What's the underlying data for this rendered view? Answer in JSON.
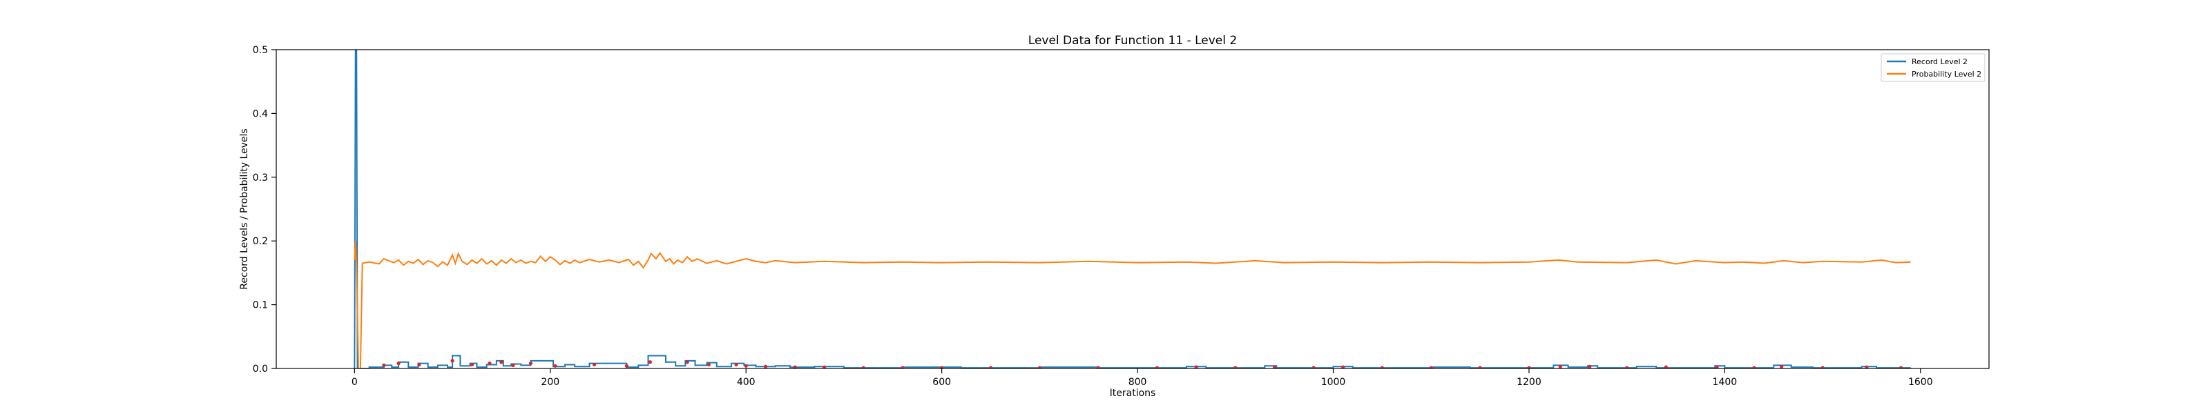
{
  "chart_data": {
    "type": "line",
    "title": "Level Data for Function 11 - Level 2",
    "xlabel": "Iterations",
    "ylabel": "Record Levels / Probability Levels",
    "xlim": [
      -80,
      1670
    ],
    "ylim": [
      0,
      0.5
    ],
    "x_ticks": [
      0,
      200,
      400,
      600,
      800,
      1000,
      1200,
      1400,
      1600
    ],
    "y_ticks": [
      0.0,
      0.1,
      0.2,
      0.3,
      0.4,
      0.5
    ],
    "x_tick_labels": [
      "0",
      "200",
      "400",
      "600",
      "800",
      "1000",
      "1200",
      "1400",
      "1600"
    ],
    "y_tick_labels": [
      "0.0",
      "0.1",
      "0.2",
      "0.3",
      "0.4",
      "0.5"
    ],
    "grid": false,
    "legend_position": "top-right",
    "series": [
      {
        "name": "Record Level 2",
        "color": "#1f77b4",
        "step": true,
        "points": [
          [
            0,
            0.0
          ],
          [
            1,
            0.5
          ],
          [
            2,
            0.5
          ],
          [
            3,
            0.0
          ],
          [
            15,
            0.0
          ],
          [
            15,
            0.002
          ],
          [
            30,
            0.002
          ],
          [
            30,
            0.005
          ],
          [
            38,
            0.005
          ],
          [
            38,
            0.002
          ],
          [
            45,
            0.002
          ],
          [
            45,
            0.01
          ],
          [
            55,
            0.01
          ],
          [
            55,
            0.002
          ],
          [
            65,
            0.002
          ],
          [
            65,
            0.008
          ],
          [
            75,
            0.008
          ],
          [
            75,
            0.002
          ],
          [
            85,
            0.002
          ],
          [
            85,
            0.005
          ],
          [
            95,
            0.005
          ],
          [
            95,
            0.002
          ],
          [
            100,
            0.002
          ],
          [
            100,
            0.02
          ],
          [
            108,
            0.02
          ],
          [
            108,
            0.004
          ],
          [
            118,
            0.004
          ],
          [
            118,
            0.008
          ],
          [
            125,
            0.008
          ],
          [
            125,
            0.002
          ],
          [
            135,
            0.002
          ],
          [
            135,
            0.006
          ],
          [
            145,
            0.006
          ],
          [
            145,
            0.012
          ],
          [
            152,
            0.012
          ],
          [
            152,
            0.004
          ],
          [
            160,
            0.004
          ],
          [
            160,
            0.007
          ],
          [
            170,
            0.007
          ],
          [
            170,
            0.005
          ],
          [
            180,
            0.005
          ],
          [
            180,
            0.012
          ],
          [
            203,
            0.012
          ],
          [
            203,
            0.003
          ],
          [
            215,
            0.003
          ],
          [
            215,
            0.006
          ],
          [
            225,
            0.006
          ],
          [
            225,
            0.003
          ],
          [
            240,
            0.003
          ],
          [
            240,
            0.008
          ],
          [
            278,
            0.008
          ],
          [
            278,
            0.002
          ],
          [
            290,
            0.002
          ],
          [
            290,
            0.005
          ],
          [
            300,
            0.005
          ],
          [
            300,
            0.02
          ],
          [
            318,
            0.02
          ],
          [
            318,
            0.01
          ],
          [
            328,
            0.01
          ],
          [
            328,
            0.004
          ],
          [
            338,
            0.004
          ],
          [
            338,
            0.012
          ],
          [
            348,
            0.012
          ],
          [
            348,
            0.005
          ],
          [
            360,
            0.005
          ],
          [
            360,
            0.009
          ],
          [
            370,
            0.009
          ],
          [
            370,
            0.003
          ],
          [
            385,
            0.003
          ],
          [
            385,
            0.008
          ],
          [
            398,
            0.008
          ],
          [
            398,
            0.005
          ],
          [
            410,
            0.005
          ],
          [
            410,
            0.003
          ],
          [
            430,
            0.003
          ],
          [
            430,
            0.004
          ],
          [
            445,
            0.004
          ],
          [
            445,
            0.002
          ],
          [
            470,
            0.002
          ],
          [
            470,
            0.003
          ],
          [
            500,
            0.003
          ],
          [
            500,
            0.001
          ],
          [
            560,
            0.001
          ],
          [
            560,
            0.002
          ],
          [
            620,
            0.002
          ],
          [
            620,
            0.001
          ],
          [
            700,
            0.001
          ],
          [
            700,
            0.002
          ],
          [
            760,
            0.002
          ],
          [
            760,
            0.001
          ],
          [
            850,
            0.001
          ],
          [
            850,
            0.003
          ],
          [
            870,
            0.003
          ],
          [
            870,
            0.001
          ],
          [
            930,
            0.001
          ],
          [
            930,
            0.004
          ],
          [
            942,
            0.004
          ],
          [
            942,
            0.001
          ],
          [
            1000,
            0.001
          ],
          [
            1000,
            0.003
          ],
          [
            1020,
            0.003
          ],
          [
            1020,
            0.001
          ],
          [
            1100,
            0.001
          ],
          [
            1100,
            0.002
          ],
          [
            1140,
            0.002
          ],
          [
            1140,
            0.001
          ],
          [
            1225,
            0.001
          ],
          [
            1225,
            0.005
          ],
          [
            1240,
            0.005
          ],
          [
            1240,
            0.002
          ],
          [
            1260,
            0.002
          ],
          [
            1260,
            0.004
          ],
          [
            1270,
            0.004
          ],
          [
            1270,
            0.001
          ],
          [
            1310,
            0.001
          ],
          [
            1310,
            0.003
          ],
          [
            1330,
            0.003
          ],
          [
            1330,
            0.001
          ],
          [
            1390,
            0.001
          ],
          [
            1390,
            0.004
          ],
          [
            1400,
            0.004
          ],
          [
            1400,
            0.001
          ],
          [
            1450,
            0.001
          ],
          [
            1450,
            0.005
          ],
          [
            1468,
            0.005
          ],
          [
            1468,
            0.002
          ],
          [
            1490,
            0.002
          ],
          [
            1490,
            0.001
          ],
          [
            1540,
            0.001
          ],
          [
            1540,
            0.003
          ],
          [
            1555,
            0.003
          ],
          [
            1555,
            0.001
          ],
          [
            1590,
            0.001
          ]
        ]
      },
      {
        "name": "Probability Level 2",
        "color": "#ff7f0e",
        "step": false,
        "points": [
          [
            0,
            0.17
          ],
          [
            1,
            0.2
          ],
          [
            2,
            0.165
          ],
          [
            4,
            0.0
          ],
          [
            6,
            0.0
          ],
          [
            8,
            0.165
          ],
          [
            15,
            0.167
          ],
          [
            25,
            0.164
          ],
          [
            30,
            0.172
          ],
          [
            40,
            0.166
          ],
          [
            45,
            0.17
          ],
          [
            50,
            0.162
          ],
          [
            55,
            0.168
          ],
          [
            60,
            0.165
          ],
          [
            65,
            0.171
          ],
          [
            70,
            0.163
          ],
          [
            75,
            0.169
          ],
          [
            80,
            0.166
          ],
          [
            85,
            0.16
          ],
          [
            90,
            0.167
          ],
          [
            95,
            0.162
          ],
          [
            100,
            0.178
          ],
          [
            103,
            0.165
          ],
          [
            106,
            0.18
          ],
          [
            110,
            0.168
          ],
          [
            115,
            0.163
          ],
          [
            120,
            0.17
          ],
          [
            125,
            0.165
          ],
          [
            130,
            0.172
          ],
          [
            135,
            0.164
          ],
          [
            140,
            0.169
          ],
          [
            145,
            0.162
          ],
          [
            150,
            0.17
          ],
          [
            155,
            0.165
          ],
          [
            160,
            0.172
          ],
          [
            165,
            0.166
          ],
          [
            170,
            0.17
          ],
          [
            175,
            0.165
          ],
          [
            180,
            0.168
          ],
          [
            185,
            0.166
          ],
          [
            190,
            0.176
          ],
          [
            195,
            0.168
          ],
          [
            200,
            0.175
          ],
          [
            205,
            0.17
          ],
          [
            210,
            0.163
          ],
          [
            215,
            0.169
          ],
          [
            220,
            0.165
          ],
          [
            225,
            0.17
          ],
          [
            230,
            0.166
          ],
          [
            240,
            0.171
          ],
          [
            250,
            0.167
          ],
          [
            260,
            0.17
          ],
          [
            270,
            0.166
          ],
          [
            280,
            0.171
          ],
          [
            285,
            0.162
          ],
          [
            290,
            0.168
          ],
          [
            295,
            0.158
          ],
          [
            300,
            0.17
          ],
          [
            303,
            0.18
          ],
          [
            308,
            0.172
          ],
          [
            312,
            0.181
          ],
          [
            318,
            0.168
          ],
          [
            322,
            0.172
          ],
          [
            326,
            0.164
          ],
          [
            330,
            0.17
          ],
          [
            335,
            0.166
          ],
          [
            340,
            0.175
          ],
          [
            345,
            0.168
          ],
          [
            350,
            0.172
          ],
          [
            360,
            0.165
          ],
          [
            370,
            0.169
          ],
          [
            380,
            0.164
          ],
          [
            390,
            0.168
          ],
          [
            400,
            0.172
          ],
          [
            410,
            0.168
          ],
          [
            420,
            0.166
          ],
          [
            430,
            0.169
          ],
          [
            450,
            0.166
          ],
          [
            480,
            0.168
          ],
          [
            520,
            0.166
          ],
          [
            560,
            0.167
          ],
          [
            600,
            0.166
          ],
          [
            650,
            0.167
          ],
          [
            700,
            0.166
          ],
          [
            750,
            0.168
          ],
          [
            800,
            0.166
          ],
          [
            850,
            0.167
          ],
          [
            880,
            0.165
          ],
          [
            920,
            0.169
          ],
          [
            950,
            0.166
          ],
          [
            1000,
            0.167
          ],
          [
            1050,
            0.166
          ],
          [
            1100,
            0.167
          ],
          [
            1150,
            0.166
          ],
          [
            1200,
            0.167
          ],
          [
            1230,
            0.17
          ],
          [
            1250,
            0.167
          ],
          [
            1300,
            0.166
          ],
          [
            1330,
            0.17
          ],
          [
            1350,
            0.164
          ],
          [
            1370,
            0.169
          ],
          [
            1400,
            0.166
          ],
          [
            1420,
            0.167
          ],
          [
            1440,
            0.165
          ],
          [
            1460,
            0.169
          ],
          [
            1480,
            0.166
          ],
          [
            1500,
            0.168
          ],
          [
            1540,
            0.167
          ],
          [
            1560,
            0.17
          ],
          [
            1575,
            0.166
          ],
          [
            1590,
            0.167
          ]
        ]
      },
      {
        "name": "",
        "color": "#d62728",
        "markers_only": true,
        "points": [
          [
            30,
            0.005
          ],
          [
            45,
            0.008
          ],
          [
            66,
            0.006
          ],
          [
            100,
            0.012
          ],
          [
            120,
            0.006
          ],
          [
            138,
            0.008
          ],
          [
            150,
            0.01
          ],
          [
            162,
            0.005
          ],
          [
            180,
            0.008
          ],
          [
            205,
            0.004
          ],
          [
            245,
            0.006
          ],
          [
            278,
            0.004
          ],
          [
            302,
            0.01
          ],
          [
            340,
            0.01
          ],
          [
            362,
            0.006
          ],
          [
            390,
            0.006
          ],
          [
            400,
            0.004
          ],
          [
            420,
            0.003
          ],
          [
            450,
            0.002
          ],
          [
            480,
            0.002
          ],
          [
            520,
            0.001
          ],
          [
            560,
            0.001
          ],
          [
            600,
            0.001
          ],
          [
            650,
            0.001
          ],
          [
            700,
            0.001
          ],
          [
            760,
            0.001
          ],
          [
            820,
            0.001
          ],
          [
            860,
            0.002
          ],
          [
            900,
            0.001
          ],
          [
            940,
            0.002
          ],
          [
            980,
            0.001
          ],
          [
            1010,
            0.002
          ],
          [
            1050,
            0.001
          ],
          [
            1100,
            0.001
          ],
          [
            1150,
            0.001
          ],
          [
            1200,
            0.001
          ],
          [
            1232,
            0.003
          ],
          [
            1262,
            0.003
          ],
          [
            1300,
            0.001
          ],
          [
            1340,
            0.002
          ],
          [
            1392,
            0.002
          ],
          [
            1430,
            0.001
          ],
          [
            1458,
            0.003
          ],
          [
            1500,
            0.001
          ],
          [
            1545,
            0.002
          ],
          [
            1580,
            0.001
          ]
        ]
      }
    ]
  }
}
